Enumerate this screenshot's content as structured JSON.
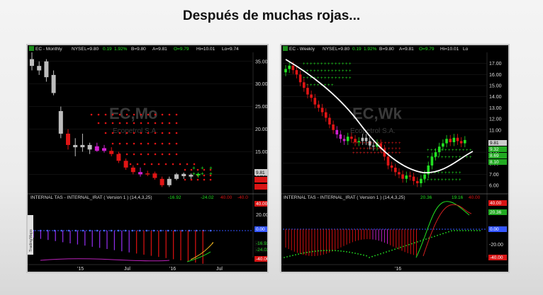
{
  "title": "Después de muchas rojas...",
  "colors": {
    "up": "#22e022",
    "down": "#e01515",
    "neutral": "#bdbdbd",
    "magenta": "#d020d0",
    "white": "#ffffff",
    "grid": "#7a0000",
    "blue": "#3355ff"
  },
  "chart_data": [
    {
      "type": "candlestick",
      "name": "monthly",
      "header": {
        "symbol": "EC - Monthly",
        "exchange": "NYSE",
        "last": "L=9.80",
        "change": "0.19",
        "pct": "1.92%",
        "bid": "B=9.80",
        "ask": "A=9.81",
        "open": "O=9.79",
        "high": "Hi=10.01",
        "low": "Lo=9.74"
      },
      "watermark": {
        "symbol": "EC,Mo",
        "company": "Ecopetrol S.A."
      },
      "y_ticks": [
        35.0,
        30.0,
        25.0,
        20.0,
        15.0,
        10.0
      ],
      "ylim": [
        6,
        37
      ],
      "price_label": "9.81",
      "x_ticks": [
        "'15",
        "Jul",
        "'16",
        "Jul"
      ],
      "candles": [
        {
          "o": 35.5,
          "h": 37.0,
          "l": 33.0,
          "c": 34.0,
          "color": "neutral"
        },
        {
          "o": 34.0,
          "h": 35.0,
          "l": 32.0,
          "c": 33.0,
          "color": "neutral"
        },
        {
          "o": 35.0,
          "h": 35.5,
          "l": 30.5,
          "c": 31.5,
          "color": "neutral"
        },
        {
          "o": 32.0,
          "h": 33.0,
          "l": 27.5,
          "c": 28.0,
          "color": "neutral"
        },
        {
          "o": 24.0,
          "h": 25.0,
          "l": 18.0,
          "c": 19.0,
          "color": "neutral"
        },
        {
          "o": 19.0,
          "h": 20.0,
          "l": 15.5,
          "c": 16.5,
          "color": "down"
        },
        {
          "o": 16.5,
          "h": 18.0,
          "l": 14.0,
          "c": 16.0,
          "color": "neutral"
        },
        {
          "o": 16.0,
          "h": 19.0,
          "l": 15.0,
          "c": 16.5,
          "color": "neutral"
        },
        {
          "o": 16.5,
          "h": 17.0,
          "l": 14.5,
          "c": 15.5,
          "color": "neutral"
        },
        {
          "o": 16.2,
          "h": 17.0,
          "l": 15.0,
          "c": 15.2,
          "color": "magenta"
        },
        {
          "o": 15.8,
          "h": 16.5,
          "l": 14.8,
          "c": 15.2,
          "color": "magenta"
        },
        {
          "o": 15.2,
          "h": 16.0,
          "l": 14.0,
          "c": 14.5,
          "color": "down"
        },
        {
          "o": 14.5,
          "h": 15.0,
          "l": 12.5,
          "c": 13.0,
          "color": "down"
        },
        {
          "o": 13.0,
          "h": 13.5,
          "l": 11.0,
          "c": 11.5,
          "color": "down"
        },
        {
          "o": 11.5,
          "h": 12.0,
          "l": 10.0,
          "c": 10.5,
          "color": "down"
        },
        {
          "o": 10.5,
          "h": 11.5,
          "l": 9.5,
          "c": 10.0,
          "color": "magenta"
        },
        {
          "o": 10.0,
          "h": 10.8,
          "l": 9.6,
          "c": 10.2,
          "color": "down"
        },
        {
          "o": 10.2,
          "h": 10.6,
          "l": 8.8,
          "c": 9.2,
          "color": "down"
        },
        {
          "o": 9.0,
          "h": 9.5,
          "l": 7.2,
          "c": 7.6,
          "color": "down"
        },
        {
          "o": 7.6,
          "h": 9.5,
          "l": 7.2,
          "c": 9.0,
          "color": "neutral"
        },
        {
          "o": 9.0,
          "h": 10.3,
          "l": 8.7,
          "c": 10.0,
          "color": "neutral"
        },
        {
          "o": 9.6,
          "h": 10.4,
          "l": 9.0,
          "c": 10.1,
          "color": "neutral"
        },
        {
          "o": 9.5,
          "h": 10.2,
          "l": 9.0,
          "c": 9.9,
          "color": "neutral"
        },
        {
          "o": 9.8,
          "h": 10.4,
          "l": 9.3,
          "c": 10.1,
          "color": "up"
        }
      ],
      "indicator": {
        "title": "INTERNAL TAS - INTERNAL_IRAT ( Version 1 ) (14,4,3,25)",
        "readouts": [
          "-16.92",
          "-24.02",
          "40.00",
          "-40.0"
        ],
        "y_ticks": [
          20.0
        ],
        "right_labels": [
          "40.00",
          "20.00",
          "0.00",
          "-16.92",
          "-24.02",
          "-40.00"
        ],
        "side_text": "TradingMaps"
      }
    },
    {
      "type": "candlestick",
      "name": "weekly",
      "header": {
        "symbol": "EC - Weekly",
        "exchange": "NYSE",
        "last": "L=9.80",
        "change": "0.19",
        "pct": "1.92%",
        "bid": "B=9.80",
        "ask": "A=9.81",
        "open": "O=9.79",
        "high": "Hi=10.01",
        "low": "Lo"
      },
      "watermark": {
        "symbol": "EC,Wk",
        "company": "Ecopetrol S.A."
      },
      "y_ticks": [
        17.0,
        16.0,
        15.0,
        14.0,
        13.0,
        12.0,
        11.0,
        9.0,
        8.0,
        7.0,
        6.0
      ],
      "ylim": [
        5.5,
        18
      ],
      "right_labels": [
        "9.81",
        "9.32",
        "8.69",
        "8.10"
      ],
      "x_ticks": [
        "'16"
      ],
      "indicator": {
        "title": "INTERNAL TAS - INTERNAL_IRAT ( Version 1 ) (14,4,3,25)",
        "readouts": [
          "20.36",
          "19.16",
          "40.00"
        ],
        "y_ticks": [
          -20.0
        ],
        "right_labels": [
          "40.00",
          "20.36",
          "0.00",
          "-20.00",
          "-40.00"
        ]
      }
    }
  ]
}
